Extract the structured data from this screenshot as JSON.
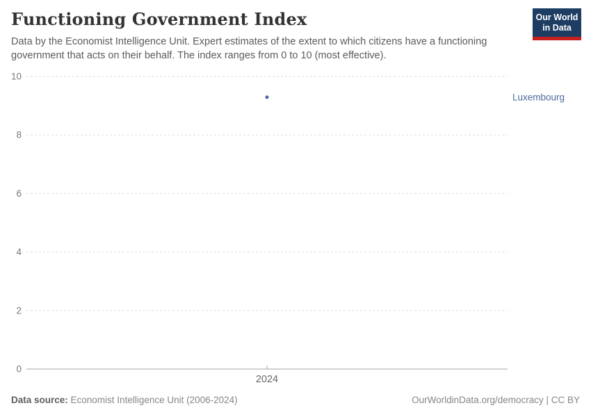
{
  "header": {
    "title": "Functioning Government Index",
    "subtitle": "Data by the Economist Intelligence Unit. Expert estimates of the extent to which citizens have a functioning government that acts on their behalf. The index ranges from 0 to 10 (most effective)."
  },
  "logo": {
    "line1": "Our World",
    "line2": "in Data",
    "bg_color": "#1d3d63",
    "accent_color": "#c7201f"
  },
  "chart_data": {
    "type": "scatter",
    "title": "Functioning Government Index",
    "x": [
      2024
    ],
    "series": [
      {
        "name": "Luxembourg",
        "color": "#4C6A9C",
        "values": [
          9.29
        ]
      }
    ],
    "ylim": [
      0,
      10
    ],
    "yticks": [
      0,
      2,
      4,
      6,
      8,
      10
    ],
    "xticks": [
      "2024"
    ],
    "grid": true,
    "legend_position": "right",
    "gridline_color": "#dddddd",
    "axis_color": "#a5a5a5",
    "y_tick_label_color": "#787878",
    "x_tick_label_color": "#666666"
  },
  "footer": {
    "source_label": "Data source:",
    "source_text": " Economist Intelligence Unit (2006-2024)",
    "attribution": "OurWorldinData.org/democracy | CC BY"
  }
}
